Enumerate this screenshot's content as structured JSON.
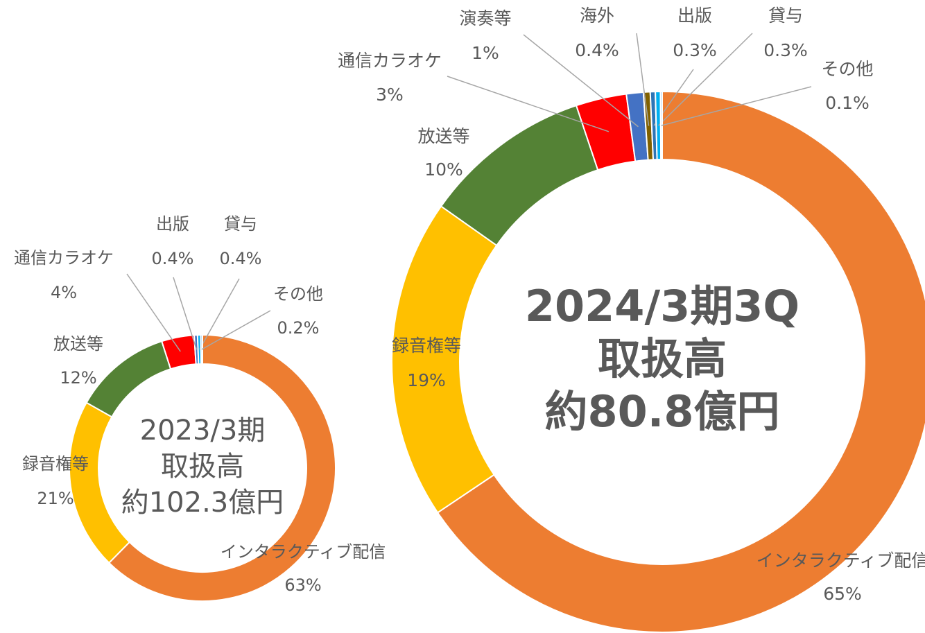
{
  "chart_data": [
    {
      "type": "donut",
      "center_text": [
        "2023/3期",
        "取扱高",
        "約102.3億円"
      ],
      "categories": [
        "インタラクティブ配信",
        "録音権等",
        "放送等",
        "通信カラオケ",
        "出版",
        "貸与",
        "その他"
      ],
      "values": [
        63,
        21,
        12,
        4,
        0.4,
        0.4,
        0.2
      ],
      "value_labels": [
        "63%",
        "21%",
        "12%",
        "4%",
        "0.4%",
        "0.4%",
        "0.2%"
      ],
      "colors": [
        "#ED7D31",
        "#FFC000",
        "#548235",
        "#FF0000",
        "#4472C4",
        "#00B0F0",
        "#5B9BD5"
      ]
    },
    {
      "type": "donut",
      "center_text": [
        "2024/3期3Q",
        "取扱高",
        "約80.8億円"
      ],
      "categories": [
        "インタラクティブ配信",
        "録音権等",
        "放送等",
        "通信カラオケ",
        "演奏等",
        "海外",
        "出版",
        "貸与",
        "その他"
      ],
      "values": [
        65,
        19,
        10,
        3,
        1,
        0.4,
        0.3,
        0.3,
        0.1
      ],
      "value_labels": [
        "65%",
        "19%",
        "10%",
        "3%",
        "1%",
        "0.4%",
        "0.3%",
        "0.3%",
        "0.1%"
      ],
      "colors": [
        "#ED7D31",
        "#FFC000",
        "#548235",
        "#FF0000",
        "#4472C4",
        "#806000",
        "#2E75B6",
        "#00B0F0",
        "#5B9BD5"
      ]
    }
  ]
}
